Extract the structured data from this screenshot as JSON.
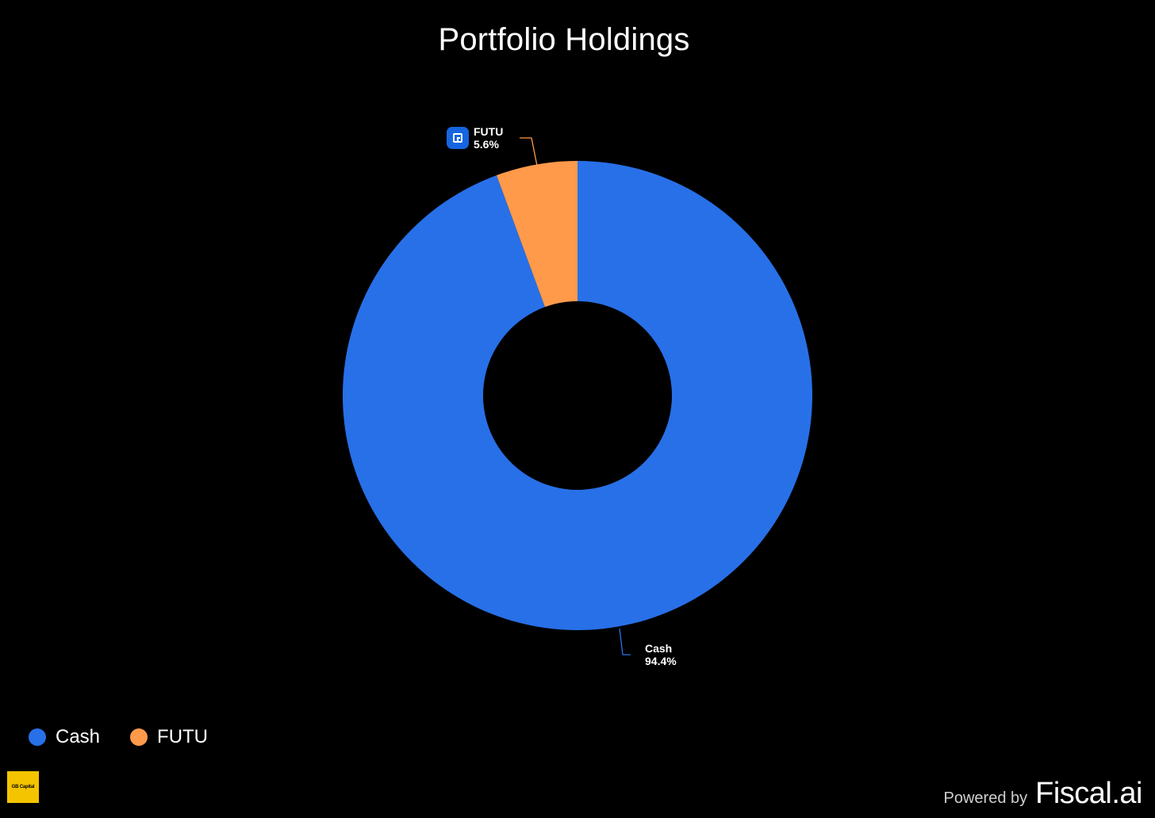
{
  "chart_data": {
    "type": "pie",
    "title": "Portfolio Holdings",
    "donut": true,
    "slices": [
      {
        "label": "Cash",
        "value": 94.4,
        "value_label": "94.4%",
        "color": "#2870e8"
      },
      {
        "label": "FUTU",
        "value": 5.6,
        "value_label": "5.6%",
        "color": "#ff9a4a"
      }
    ],
    "legend": {
      "placement": "bottom-left",
      "entries": [
        "Cash",
        "FUTU"
      ]
    }
  },
  "icons": {
    "futu_logo": "futu-logo-icon"
  },
  "footer": {
    "badge_text": "GB Capital",
    "powered_by": "Powered by",
    "brand": "Fiscal.ai"
  },
  "colors": {
    "background": "#000000",
    "cash": "#2870e8",
    "futu": "#ff9a4a",
    "logo_blue": "#1565e0",
    "badge_yellow": "#f5c400"
  }
}
